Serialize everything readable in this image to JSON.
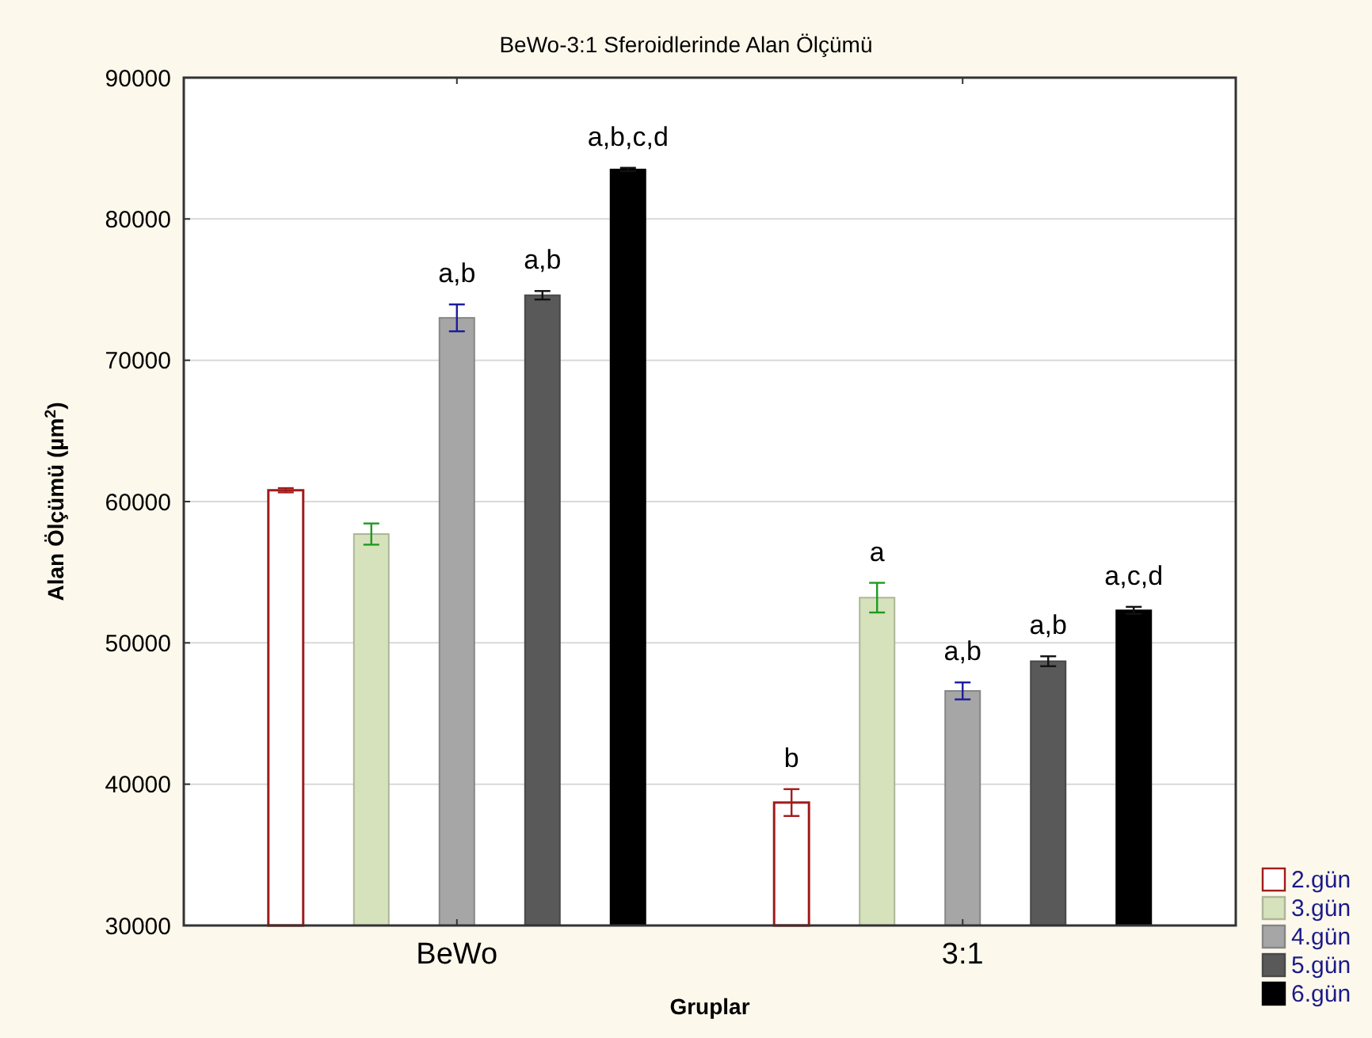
{
  "chart_data": {
    "type": "bar",
    "title": "BeWo-3:1 Sferoidlerinde Alan Ölçümü",
    "xlabel": "Gruplar",
    "ylabel": "Alan Ölçümü (µm$^{2}$)",
    "categories": [
      "BeWo",
      "3:1"
    ],
    "series": [
      {
        "name": "2.gün",
        "color": "#ffffff",
        "values": [
          60800,
          38700
        ],
        "errors": [
          150,
          950
        ],
        "value_labels": [
          null,
          "b"
        ]
      },
      {
        "name": "3.gün",
        "color": "#d6e2bc",
        "values": [
          57700,
          53200
        ],
        "errors": [
          750,
          1050
        ],
        "value_labels": [
          null,
          "a"
        ]
      },
      {
        "name": "4.gün",
        "color": "#a6a6a6",
        "values": [
          73000,
          46600
        ],
        "errors": [
          950,
          600
        ],
        "value_labels": [
          "a,b",
          "a,b"
        ]
      },
      {
        "name": "5.gün",
        "color": "#595959",
        "values": [
          74600,
          48700
        ],
        "errors": [
          300,
          350
        ],
        "value_labels": [
          "a,b",
          "a,b"
        ]
      },
      {
        "name": "6.gün",
        "color": "#000000",
        "values": [
          83500,
          52300
        ],
        "errors": [
          120,
          250
        ],
        "value_labels": [
          "a,b,c,d",
          "a,c,d"
        ]
      }
    ],
    "ylim": [
      30000,
      90000
    ],
    "yticks": [
      30000,
      40000,
      50000,
      60000,
      70000,
      80000,
      90000
    ],
    "grid": "y",
    "legend": "bottom right"
  }
}
